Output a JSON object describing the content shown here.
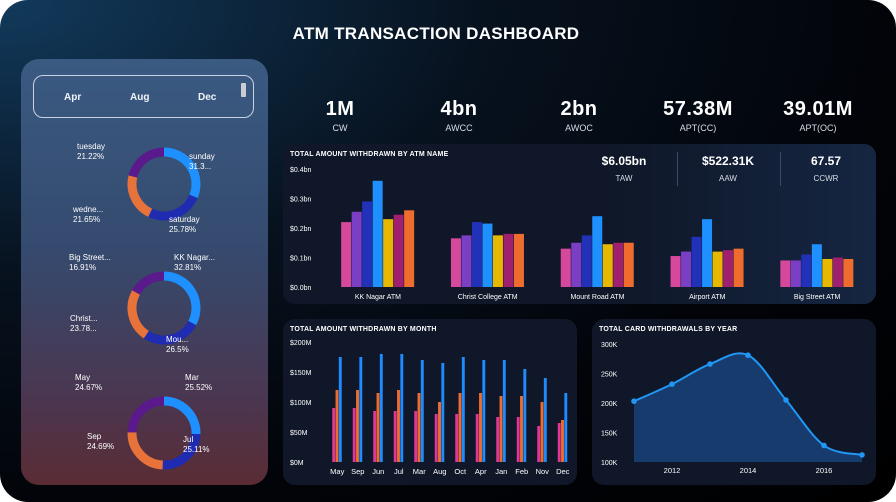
{
  "title": "ATM TRANSACTION DASHBOARD",
  "slicer": {
    "months": [
      "Apr",
      "Aug",
      "Dec"
    ]
  },
  "donuts": [
    {
      "slices": [
        {
          "label": "sunday",
          "pct": "31.3...",
          "value": 31.3,
          "color": "#1e90ff"
        },
        {
          "label": "saturday",
          "pct": "25.78%",
          "value": 25.78,
          "color": "#1f2bb0"
        },
        {
          "label": "wedne...",
          "pct": "21.65%",
          "value": 21.65,
          "color": "#e8733a"
        },
        {
          "label": "tuesday",
          "pct": "21.22%",
          "value": 21.22,
          "color": "#5a1a8c"
        }
      ]
    },
    {
      "slices": [
        {
          "label": "KK Nagar...",
          "pct": "32.81%",
          "value": 32.81,
          "color": "#1e90ff"
        },
        {
          "label": "Mou...",
          "pct": "26.5%",
          "value": 26.5,
          "color": "#1f2bb0"
        },
        {
          "label": "Christ...",
          "pct": "23.78...",
          "value": 23.78,
          "color": "#e8733a"
        },
        {
          "label": "Big Street...",
          "pct": "16.91%",
          "value": 16.91,
          "color": "#5a1a8c"
        }
      ]
    },
    {
      "slices": [
        {
          "label": "Mar",
          "pct": "25.52%",
          "value": 25.52,
          "color": "#1e90ff"
        },
        {
          "label": "Jul",
          "pct": "25.11%",
          "value": 25.11,
          "color": "#1f2bb0"
        },
        {
          "label": "Sep",
          "pct": "24.69%",
          "value": 24.69,
          "color": "#e8733a"
        },
        {
          "label": "May",
          "pct": "24.67%",
          "value": 24.67,
          "color": "#5a1a8c"
        }
      ]
    }
  ],
  "kpis": [
    {
      "value": "1M",
      "label": "CW"
    },
    {
      "value": "4bn",
      "label": "AWCC"
    },
    {
      "value": "2bn",
      "label": "AWOC"
    },
    {
      "value": "57.38M",
      "label": "APT(CC)"
    },
    {
      "value": "39.01M",
      "label": "APT(OC)"
    }
  ],
  "atm_panel": {
    "title": "TOTAL AMOUNT WITHDRAWN BY ATM NAME",
    "kpis": [
      {
        "value": "$6.05bn",
        "label": "TAW"
      },
      {
        "value": "$522.31K",
        "label": "AAW"
      },
      {
        "value": "67.57",
        "label": "CCWR"
      }
    ]
  },
  "colors": {
    "series": [
      "#d6489c",
      "#7a3fc4",
      "#2232b8",
      "#1e90ff",
      "#e6b800",
      "#a01f6e",
      "#ee6d2e"
    ],
    "month_series": [
      "#e0369a",
      "#ee6d2e",
      "#1e8cff"
    ],
    "line": "#2196f3",
    "area": "#1a3f75"
  },
  "chart_data": [
    {
      "type": "bar",
      "title": "TOTAL AMOUNT WITHDRAWN BY ATM NAME",
      "categories": [
        "KK Nagar ATM",
        "Christ College ATM",
        "Mount Road ATM",
        "Airport ATM",
        "Big Street ATM"
      ],
      "series": [
        {
          "name": "s1",
          "values": [
            0.22,
            0.165,
            0.13,
            0.105,
            0.09
          ]
        },
        {
          "name": "s2",
          "values": [
            0.255,
            0.175,
            0.15,
            0.12,
            0.09
          ]
        },
        {
          "name": "s3",
          "values": [
            0.29,
            0.22,
            0.175,
            0.17,
            0.11
          ]
        },
        {
          "name": "s4",
          "values": [
            0.36,
            0.215,
            0.24,
            0.23,
            0.145
          ]
        },
        {
          "name": "s5",
          "values": [
            0.23,
            0.175,
            0.145,
            0.12,
            0.095
          ]
        },
        {
          "name": "s6",
          "values": [
            0.245,
            0.18,
            0.15,
            0.125,
            0.1
          ]
        },
        {
          "name": "s7",
          "values": [
            0.26,
            0.18,
            0.15,
            0.13,
            0.095
          ]
        }
      ],
      "yticks": [
        "$0.0bn",
        "$0.1bn",
        "$0.2bn",
        "$0.3bn",
        "$0.4bn"
      ],
      "ylim": [
        0,
        0.4
      ],
      "xlabel": "",
      "ylabel": ""
    },
    {
      "type": "bar",
      "title": "TOTAL AMOUNT WITHDRAWN BY MONTH",
      "categories": [
        "May",
        "Sep",
        "Jun",
        "Jul",
        "Mar",
        "Aug",
        "Oct",
        "Apr",
        "Jan",
        "Feb",
        "Nov",
        "Dec"
      ],
      "series": [
        {
          "name": "s1",
          "values": [
            90,
            90,
            85,
            85,
            85,
            80,
            80,
            80,
            75,
            75,
            60,
            65
          ]
        },
        {
          "name": "s2",
          "values": [
            120,
            120,
            115,
            120,
            115,
            100,
            115,
            115,
            110,
            110,
            100,
            70
          ]
        },
        {
          "name": "s3",
          "values": [
            175,
            175,
            180,
            180,
            170,
            165,
            175,
            170,
            170,
            155,
            140,
            115
          ]
        }
      ],
      "yticks": [
        "$0M",
        "$50M",
        "$100M",
        "$150M",
        "$200M"
      ],
      "ylim": [
        0,
        200
      ],
      "xlabel": "",
      "ylabel": ""
    },
    {
      "type": "area",
      "title": "TOTAL CARD WITHDRAWALS BY YEAR",
      "x": [
        2011,
        2012,
        2013,
        2014,
        2015,
        2016,
        2017
      ],
      "values": [
        203,
        232,
        266,
        281,
        205,
        128,
        112
      ],
      "xticks": [
        "2012",
        "2014",
        "2016"
      ],
      "yticks": [
        "100K",
        "150K",
        "200K",
        "250K",
        "300K"
      ],
      "ylim": [
        100,
        300
      ],
      "xlabel": "",
      "ylabel": ""
    }
  ]
}
